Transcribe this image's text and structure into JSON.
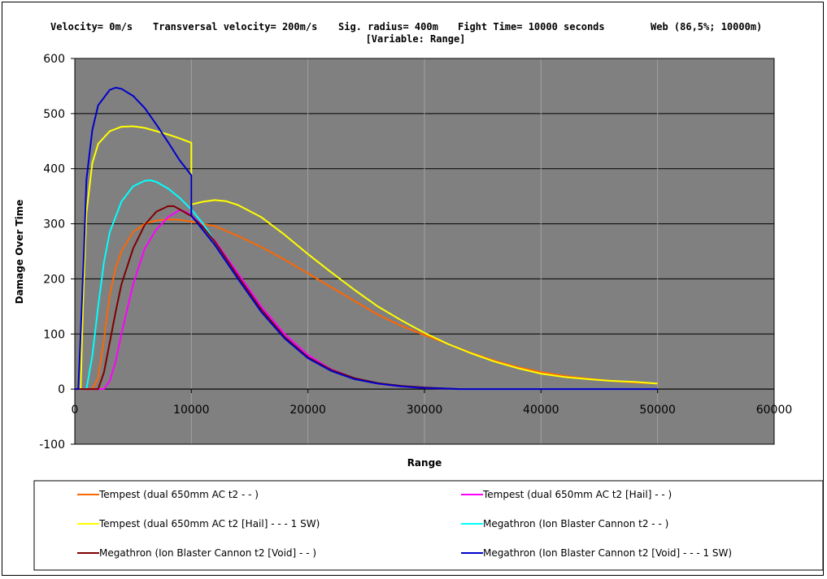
{
  "header": {
    "velocity": "Velocity= 0m/s",
    "transversal": "Transversal velocity= 200m/s",
    "sig_radius": "Sig. radius= 400m",
    "fight_time": "Fight Time= 10000 seconds",
    "web": "Web (86,5%; 10000m)",
    "variable": "[Variable: Range]"
  },
  "chart_data": {
    "type": "line",
    "title": "",
    "xlabel": "Range",
    "ylabel": "Damage Over Time",
    "xlim": [
      0,
      60000
    ],
    "ylim": [
      -100,
      600
    ],
    "x_ticks": [
      0,
      10000,
      20000,
      30000,
      40000,
      50000,
      60000
    ],
    "y_ticks": [
      -100,
      0,
      100,
      200,
      300,
      400,
      500,
      600
    ],
    "grid": true,
    "legend_position": "bottom",
    "series": [
      {
        "name": "Tempest (dual 650mm AC t2 - - )",
        "color": "#ff6600",
        "points": [
          [
            0,
            0
          ],
          [
            1500,
            0
          ],
          [
            2000,
            20
          ],
          [
            2500,
            90
          ],
          [
            3000,
            170
          ],
          [
            3500,
            220
          ],
          [
            4000,
            250
          ],
          [
            5000,
            285
          ],
          [
            6000,
            300
          ],
          [
            7000,
            306
          ],
          [
            8000,
            308
          ],
          [
            9000,
            307
          ],
          [
            10000,
            304
          ],
          [
            12000,
            296
          ],
          [
            14000,
            278
          ],
          [
            16000,
            258
          ],
          [
            18000,
            235
          ],
          [
            20000,
            210
          ],
          [
            22000,
            185
          ],
          [
            24000,
            160
          ],
          [
            26000,
            135
          ],
          [
            28000,
            115
          ],
          [
            30000,
            98
          ],
          [
            32000,
            82
          ],
          [
            34000,
            66
          ],
          [
            36000,
            52
          ],
          [
            38000,
            40
          ],
          [
            40000,
            31
          ],
          [
            42000,
            24
          ],
          [
            44000,
            19
          ],
          [
            46000,
            15
          ],
          [
            48000,
            12
          ],
          [
            50000,
            10
          ]
        ]
      },
      {
        "name": "Tempest (dual 650mm AC t2 [Hail] - - )",
        "color": "#ff00ff",
        "points": [
          [
            0,
            0
          ],
          [
            2500,
            0
          ],
          [
            3000,
            15
          ],
          [
            3500,
            50
          ],
          [
            4000,
            100
          ],
          [
            5000,
            190
          ],
          [
            6000,
            255
          ],
          [
            7000,
            290
          ],
          [
            8000,
            312
          ],
          [
            9000,
            325
          ],
          [
            9500,
            322
          ],
          [
            10000,
            315
          ],
          [
            11000,
            295
          ],
          [
            12000,
            270
          ],
          [
            14000,
            210
          ],
          [
            16000,
            150
          ],
          [
            18000,
            100
          ],
          [
            20000,
            62
          ],
          [
            22000,
            36
          ],
          [
            24000,
            20
          ],
          [
            26000,
            10
          ],
          [
            28000,
            5
          ],
          [
            30000,
            2
          ],
          [
            32000,
            1
          ],
          [
            33000,
            0
          ]
        ]
      },
      {
        "name": "Tempest (dual 650mm AC t2 [Hail] - - - 1 SW)",
        "color": "#ffff00",
        "points": [
          [
            0,
            0
          ],
          [
            500,
            0
          ],
          [
            700,
            150
          ],
          [
            1000,
            320
          ],
          [
            1500,
            410
          ],
          [
            2000,
            445
          ],
          [
            3000,
            468
          ],
          [
            4000,
            476
          ],
          [
            5000,
            477
          ],
          [
            6000,
            474
          ],
          [
            7000,
            468
          ],
          [
            8000,
            462
          ],
          [
            9000,
            455
          ],
          [
            10000,
            447
          ],
          [
            10000,
            335
          ],
          [
            11000,
            340
          ],
          [
            12000,
            343
          ],
          [
            13000,
            341
          ],
          [
            14000,
            334
          ],
          [
            16000,
            312
          ],
          [
            18000,
            280
          ],
          [
            20000,
            245
          ],
          [
            22000,
            212
          ],
          [
            24000,
            180
          ],
          [
            26000,
            150
          ],
          [
            28000,
            125
          ],
          [
            30000,
            102
          ],
          [
            32000,
            82
          ],
          [
            34000,
            65
          ],
          [
            36000,
            50
          ],
          [
            38000,
            38
          ],
          [
            40000,
            28
          ],
          [
            42000,
            22
          ],
          [
            44000,
            18
          ],
          [
            46000,
            15
          ],
          [
            48000,
            13
          ],
          [
            50000,
            10
          ]
        ]
      },
      {
        "name": "Megathron (Ion Blaster Cannon t2 - - )",
        "color": "#00ffff",
        "points": [
          [
            0,
            0
          ],
          [
            1000,
            0
          ],
          [
            1500,
            60
          ],
          [
            2000,
            150
          ],
          [
            2500,
            230
          ],
          [
            3000,
            285
          ],
          [
            4000,
            340
          ],
          [
            5000,
            368
          ],
          [
            6000,
            378
          ],
          [
            6500,
            379
          ],
          [
            7000,
            376
          ],
          [
            8000,
            364
          ],
          [
            9000,
            347
          ],
          [
            10000,
            326
          ],
          [
            11000,
            300
          ],
          [
            12000,
            268
          ],
          [
            14000,
            205
          ],
          [
            16000,
            145
          ],
          [
            18000,
            95
          ],
          [
            20000,
            58
          ],
          [
            22000,
            35
          ],
          [
            24000,
            20
          ],
          [
            26000,
            11
          ],
          [
            28000,
            6
          ],
          [
            30000,
            3
          ],
          [
            32000,
            1
          ],
          [
            33000,
            0
          ]
        ]
      },
      {
        "name": "Megathron (Ion Blaster Cannon t2 [Void] - - )",
        "color": "#800000",
        "points": [
          [
            0,
            0
          ],
          [
            2000,
            0
          ],
          [
            2500,
            30
          ],
          [
            3000,
            85
          ],
          [
            3500,
            140
          ],
          [
            4000,
            190
          ],
          [
            5000,
            255
          ],
          [
            6000,
            298
          ],
          [
            7000,
            322
          ],
          [
            8000,
            332
          ],
          [
            8500,
            332
          ],
          [
            9000,
            326
          ],
          [
            10000,
            314
          ],
          [
            11000,
            294
          ],
          [
            12000,
            268
          ],
          [
            14000,
            205
          ],
          [
            16000,
            145
          ],
          [
            18000,
            95
          ],
          [
            20000,
            58
          ],
          [
            22000,
            35
          ],
          [
            24000,
            20
          ],
          [
            26000,
            11
          ],
          [
            28000,
            6
          ],
          [
            30000,
            3
          ],
          [
            32000,
            1
          ],
          [
            33000,
            0
          ]
        ]
      },
      {
        "name": "Megathron (Ion Blaster Cannon t2 [Void] - - - 1 SW)",
        "color": "#0000cc",
        "points": [
          [
            0,
            0
          ],
          [
            300,
            0
          ],
          [
            500,
            100
          ],
          [
            800,
            260
          ],
          [
            1000,
            380
          ],
          [
            1500,
            470
          ],
          [
            2000,
            515
          ],
          [
            3000,
            543
          ],
          [
            3500,
            547
          ],
          [
            4000,
            545
          ],
          [
            5000,
            532
          ],
          [
            6000,
            510
          ],
          [
            7000,
            480
          ],
          [
            8000,
            448
          ],
          [
            9000,
            415
          ],
          [
            10000,
            388
          ],
          [
            10000,
            315
          ],
          [
            12000,
            262
          ],
          [
            14000,
            200
          ],
          [
            16000,
            140
          ],
          [
            18000,
            92
          ],
          [
            20000,
            56
          ],
          [
            22000,
            33
          ],
          [
            24000,
            18
          ],
          [
            26000,
            10
          ],
          [
            28000,
            5
          ],
          [
            30000,
            2
          ],
          [
            32000,
            1
          ],
          [
            33000,
            0
          ],
          [
            50000,
            0
          ]
        ]
      }
    ]
  }
}
